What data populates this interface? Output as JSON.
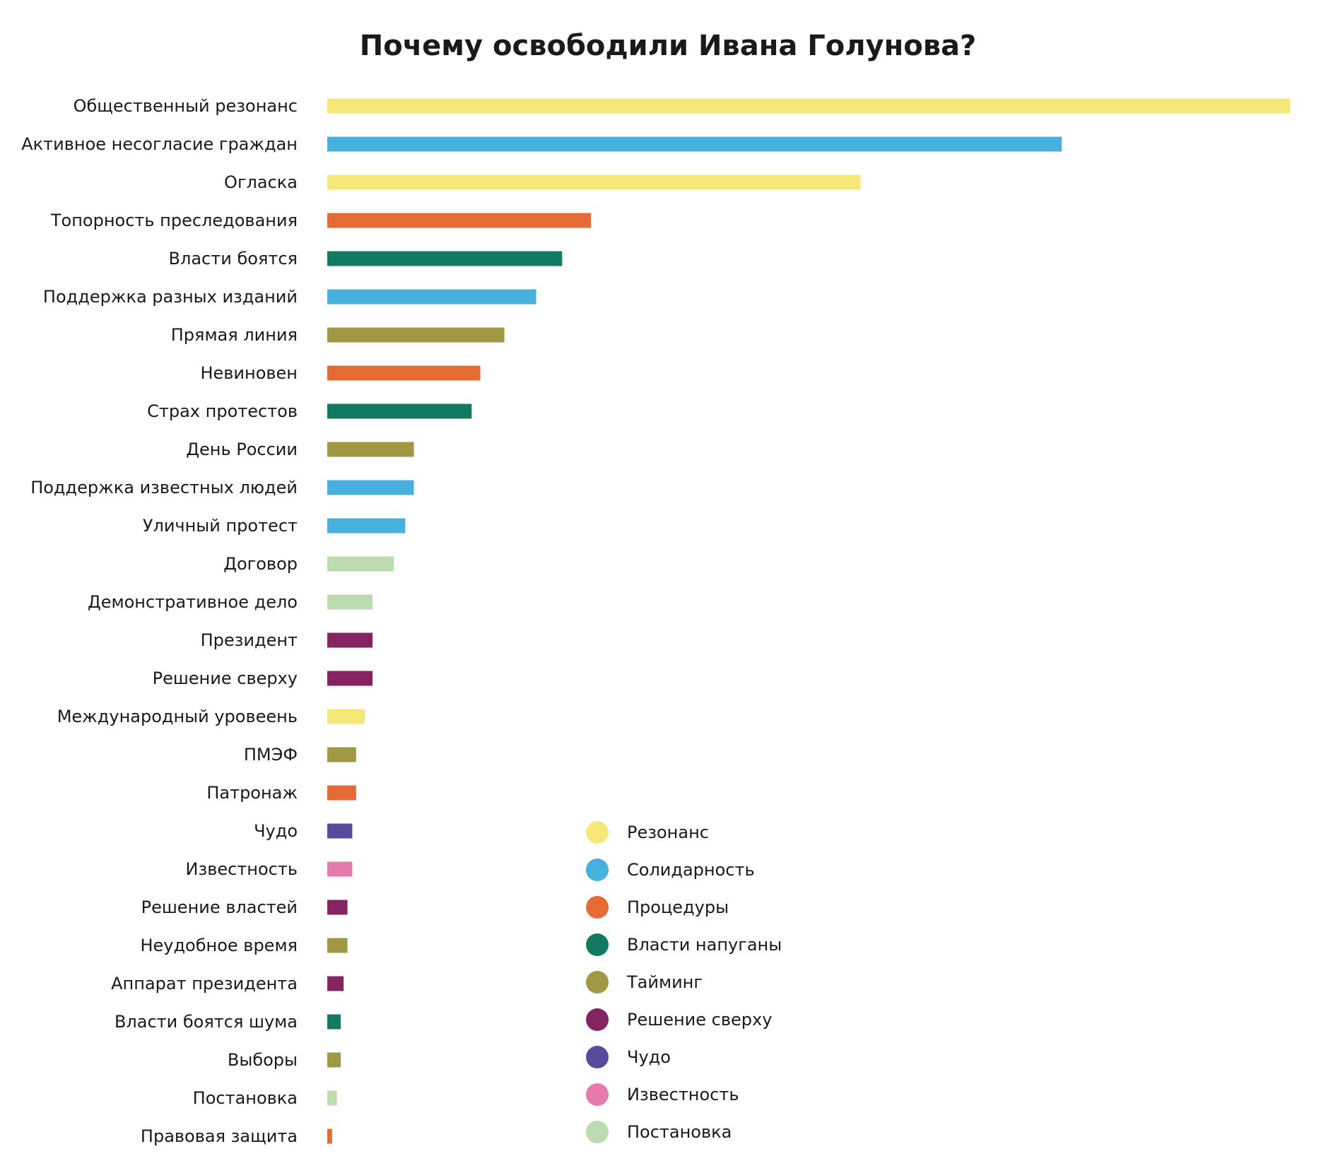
{
  "chart_data": {
    "type": "bar",
    "orientation": "horizontal",
    "title": "Почему освободили Ивана Голунова?",
    "xlabel": "",
    "ylabel": "",
    "grid": false,
    "xlim": [
      0,
      100
    ],
    "legend_position": "bottom-center",
    "categories": [
      "Общественный резонанс",
      "Активное несогласие граждан",
      "Огласка",
      "Топорность преследования",
      "Власти боятся",
      "Поддержка разных изданий",
      "Прямая линия",
      "Невиновен",
      "Страх протестов",
      "День России",
      "Поддержка известных людей",
      "Уличный протест",
      "Договор",
      "Демонстративное дело",
      "Президент",
      "Решение сверху",
      "Международный уровеень",
      "ПМЭФ",
      "Патронаж",
      "Чудо",
      "Известность",
      "Решение властей",
      "Неудобное время",
      "Аппарат президента",
      "Власти боятся шума",
      "Выборы",
      "Постановка",
      "Правовая защита"
    ],
    "values": [
      100,
      76.3,
      55.4,
      27.4,
      24.4,
      21.7,
      18.4,
      15.9,
      15.0,
      9.0,
      9.0,
      8.1,
      6.9,
      4.7,
      4.7,
      4.7,
      3.9,
      3.0,
      3.0,
      2.6,
      2.6,
      2.1,
      2.1,
      1.7,
      1.4,
      1.4,
      1.0,
      0.5
    ],
    "groups": [
      "Резонанс",
      "Солидарность",
      "Резонанс",
      "Процедуры",
      "Власти напуганы",
      "Солидарность",
      "Тайминг",
      "Процедуры",
      "Власти напуганы",
      "Тайминг",
      "Солидарность",
      "Солидарность",
      "Постановка",
      "Постановка",
      "Решение сверху",
      "Решение сверху",
      "Резонанс",
      "Тайминг",
      "Процедуры",
      "Чудо",
      "Известность",
      "Решение сверху",
      "Тайминг",
      "Решение сверху",
      "Власти напуганы",
      "Тайминг",
      "Постановка",
      "Процедуры"
    ],
    "legend": [
      {
        "name": "Резонанс",
        "color": "#f5e878"
      },
      {
        "name": "Солидарность",
        "color": "#47b0dc"
      },
      {
        "name": "Процедуры",
        "color": "#e56b34"
      },
      {
        "name": "Власти напуганы",
        "color": "#127a60"
      },
      {
        "name": "Тайминг",
        "color": "#a19846"
      },
      {
        "name": "Решение сверху",
        "color": "#852460"
      },
      {
        "name": "Чудо",
        "color": "#574b9b"
      },
      {
        "name": "Известность",
        "color": "#e57aad"
      },
      {
        "name": "Постановка",
        "color": "#bddbb0"
      }
    ]
  }
}
